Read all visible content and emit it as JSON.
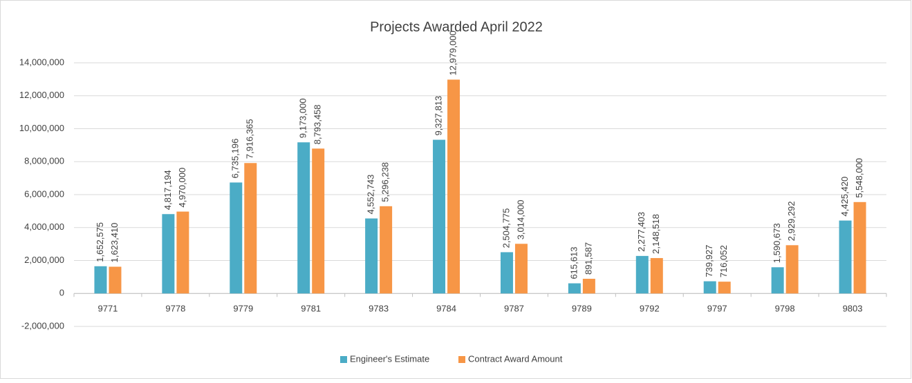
{
  "chart_data": {
    "type": "bar",
    "title": "Projects Awarded April 2022",
    "categories": [
      "9771",
      "9778",
      "9779",
      "9781",
      "9783",
      "9784",
      "9787",
      "9789",
      "9792",
      "9797",
      "9798",
      "9803"
    ],
    "series": [
      {
        "name": "Engineer's Estimate",
        "color": "#4bacc6",
        "values": [
          1652575,
          4817194,
          6735196,
          9173000,
          4552743,
          9327813,
          2504775,
          615613,
          2277403,
          739927,
          1590673,
          4425420
        ],
        "value_labels": [
          "1,652,575",
          "4,817,194",
          "6,735,196",
          "9,173,000",
          "4,552,743",
          "9,327,813",
          "2,504,775",
          "615,613",
          "2,277,403",
          "739,927",
          "1,590,673",
          "4,425,420"
        ]
      },
      {
        "name": "Contract Award Amount",
        "color": "#f79646",
        "values": [
          1623410,
          4970000,
          7916365,
          8793458,
          5296238,
          12979000,
          3014000,
          891587,
          2148518,
          716052,
          2929292,
          5548000
        ],
        "value_labels": [
          "1,623,410",
          "4,970,000",
          "7,916,365",
          "8,793,458",
          "5,296,238",
          "12,979,000",
          "3,014,000",
          "891,587",
          "2,148,518",
          "716,052",
          "2,929,292",
          "5,548,000"
        ]
      }
    ],
    "ylim": [
      -2000000,
      14000000
    ],
    "yticks": [
      {
        "value": -2000000,
        "label": "-2,000,000"
      },
      0,
      {
        "value": 2000000,
        "label": "2,000,000"
      },
      {
        "value": 4000000,
        "label": "4,000,000"
      },
      {
        "value": 6000000,
        "label": "6,000,000"
      },
      {
        "value": 8000000,
        "label": "8,000,000"
      },
      {
        "value": 10000000,
        "label": "10,000,000"
      },
      {
        "value": 12000000,
        "label": "12,000,000"
      },
      {
        "value": 14000000,
        "label": "14,000,000"
      }
    ],
    "grid": true,
    "legend": "bottom"
  }
}
